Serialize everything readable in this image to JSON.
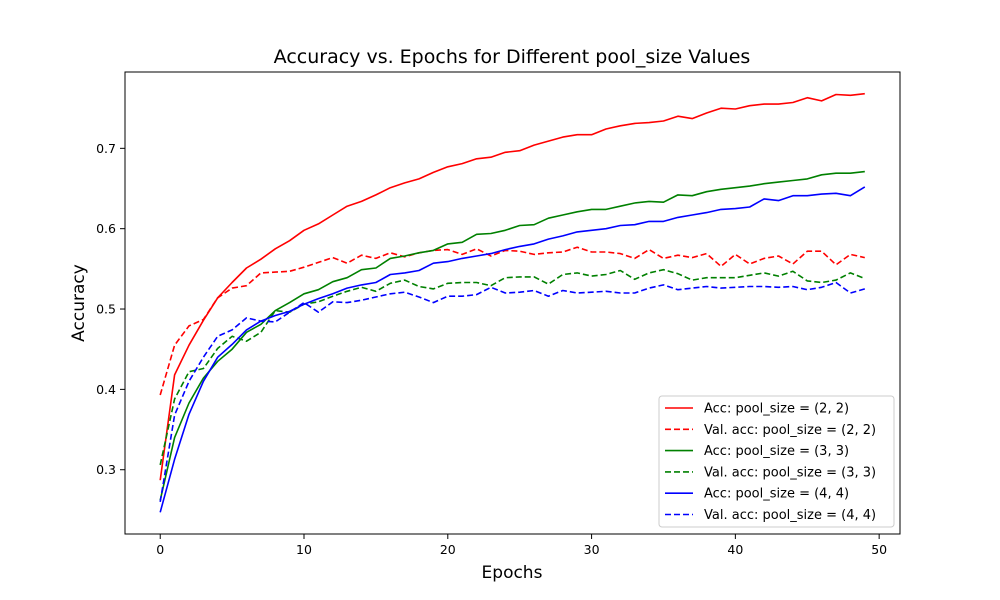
{
  "chart_data": {
    "type": "line",
    "title": "Accuracy vs. Epochs for Different pool_size Values",
    "xlabel": "Epochs",
    "ylabel": "Accuracy",
    "xlim": [
      -2.45,
      51.45
    ],
    "ylim": [
      0.22,
      0.795
    ],
    "xticks": [
      0,
      10,
      20,
      30,
      40,
      50
    ],
    "yticks": [
      0.3,
      0.4,
      0.5,
      0.6,
      0.7
    ],
    "xtick_labels": [
      "0",
      "10",
      "20",
      "30",
      "40",
      "50"
    ],
    "ytick_labels": [
      "0.3",
      "0.4",
      "0.5",
      "0.6",
      "0.7"
    ],
    "grid": false,
    "legend_position": "lower-right",
    "x": [
      0,
      1,
      2,
      3,
      4,
      5,
      6,
      7,
      8,
      9,
      10,
      11,
      12,
      13,
      14,
      15,
      16,
      17,
      18,
      19,
      20,
      21,
      22,
      23,
      24,
      25,
      26,
      27,
      28,
      29,
      30,
      31,
      32,
      33,
      34,
      35,
      36,
      37,
      38,
      39,
      40,
      41,
      42,
      43,
      44,
      45,
      46,
      47,
      48,
      49
    ],
    "series": [
      {
        "name": "Acc: pool_size = (2, 2)",
        "color": "#ff0000",
        "style": "solid",
        "values": [
          0.287,
          0.418,
          0.455,
          0.486,
          0.514,
          0.533,
          0.551,
          0.562,
          0.575,
          0.585,
          0.598,
          0.606,
          0.617,
          0.628,
          0.634,
          0.642,
          0.651,
          0.657,
          0.662,
          0.67,
          0.677,
          0.681,
          0.687,
          0.689,
          0.695,
          0.697,
          0.704,
          0.709,
          0.714,
          0.717,
          0.717,
          0.724,
          0.728,
          0.731,
          0.732,
          0.734,
          0.74,
          0.737,
          0.744,
          0.75,
          0.749,
          0.753,
          0.755,
          0.755,
          0.757,
          0.763,
          0.759,
          0.767,
          0.766,
          0.768
        ]
      },
      {
        "name": "Val. acc: pool_size = (2, 2)",
        "color": "#ff0000",
        "style": "dashed",
        "values": [
          0.393,
          0.455,
          0.479,
          0.487,
          0.514,
          0.526,
          0.529,
          0.545,
          0.546,
          0.547,
          0.552,
          0.558,
          0.564,
          0.557,
          0.567,
          0.563,
          0.57,
          0.565,
          0.57,
          0.573,
          0.574,
          0.568,
          0.575,
          0.566,
          0.573,
          0.572,
          0.568,
          0.57,
          0.571,
          0.577,
          0.571,
          0.571,
          0.569,
          0.563,
          0.574,
          0.563,
          0.567,
          0.564,
          0.569,
          0.553,
          0.568,
          0.556,
          0.563,
          0.566,
          0.556,
          0.572,
          0.572,
          0.555,
          0.568,
          0.564
        ]
      },
      {
        "name": "Acc: pool_size = (3, 3)",
        "color": "#008000",
        "style": "solid",
        "values": [
          0.262,
          0.34,
          0.383,
          0.414,
          0.435,
          0.45,
          0.471,
          0.481,
          0.498,
          0.508,
          0.519,
          0.524,
          0.534,
          0.539,
          0.549,
          0.551,
          0.563,
          0.566,
          0.57,
          0.573,
          0.581,
          0.583,
          0.593,
          0.594,
          0.598,
          0.604,
          0.605,
          0.613,
          0.617,
          0.621,
          0.624,
          0.624,
          0.628,
          0.632,
          0.634,
          0.633,
          0.642,
          0.641,
          0.646,
          0.649,
          0.651,
          0.653,
          0.656,
          0.658,
          0.66,
          0.662,
          0.667,
          0.669,
          0.669,
          0.671
        ]
      },
      {
        "name": "Val. acc: pool_size = (3, 3)",
        "color": "#008000",
        "style": "dashed",
        "values": [
          0.306,
          0.388,
          0.422,
          0.426,
          0.451,
          0.466,
          0.46,
          0.471,
          0.498,
          0.496,
          0.506,
          0.509,
          0.516,
          0.522,
          0.527,
          0.522,
          0.532,
          0.536,
          0.528,
          0.525,
          0.532,
          0.533,
          0.533,
          0.529,
          0.539,
          0.54,
          0.54,
          0.531,
          0.543,
          0.545,
          0.541,
          0.543,
          0.548,
          0.537,
          0.545,
          0.549,
          0.544,
          0.536,
          0.539,
          0.539,
          0.539,
          0.542,
          0.545,
          0.541,
          0.547,
          0.535,
          0.533,
          0.536,
          0.545,
          0.538
        ]
      },
      {
        "name": "Acc: pool_size = (4, 4)",
        "color": "#0000ff",
        "style": "solid",
        "values": [
          0.247,
          0.313,
          0.369,
          0.41,
          0.44,
          0.456,
          0.474,
          0.485,
          0.492,
          0.497,
          0.506,
          0.513,
          0.519,
          0.526,
          0.53,
          0.533,
          0.543,
          0.545,
          0.548,
          0.557,
          0.559,
          0.563,
          0.566,
          0.569,
          0.574,
          0.578,
          0.581,
          0.587,
          0.591,
          0.596,
          0.598,
          0.6,
          0.604,
          0.605,
          0.609,
          0.609,
          0.614,
          0.617,
          0.62,
          0.624,
          0.625,
          0.627,
          0.637,
          0.635,
          0.641,
          0.641,
          0.643,
          0.644,
          0.641,
          0.652
        ]
      },
      {
        "name": "Val. acc: pool_size = (4, 4)",
        "color": "#0000ff",
        "style": "dashed",
        "values": [
          0.26,
          0.368,
          0.41,
          0.44,
          0.466,
          0.474,
          0.489,
          0.485,
          0.484,
          0.496,
          0.508,
          0.496,
          0.509,
          0.508,
          0.511,
          0.515,
          0.519,
          0.521,
          0.515,
          0.508,
          0.516,
          0.516,
          0.518,
          0.527,
          0.52,
          0.521,
          0.523,
          0.516,
          0.523,
          0.52,
          0.521,
          0.522,
          0.52,
          0.52,
          0.526,
          0.53,
          0.524,
          0.526,
          0.528,
          0.526,
          0.527,
          0.528,
          0.528,
          0.527,
          0.528,
          0.524,
          0.527,
          0.533,
          0.52,
          0.525
        ]
      }
    ]
  }
}
